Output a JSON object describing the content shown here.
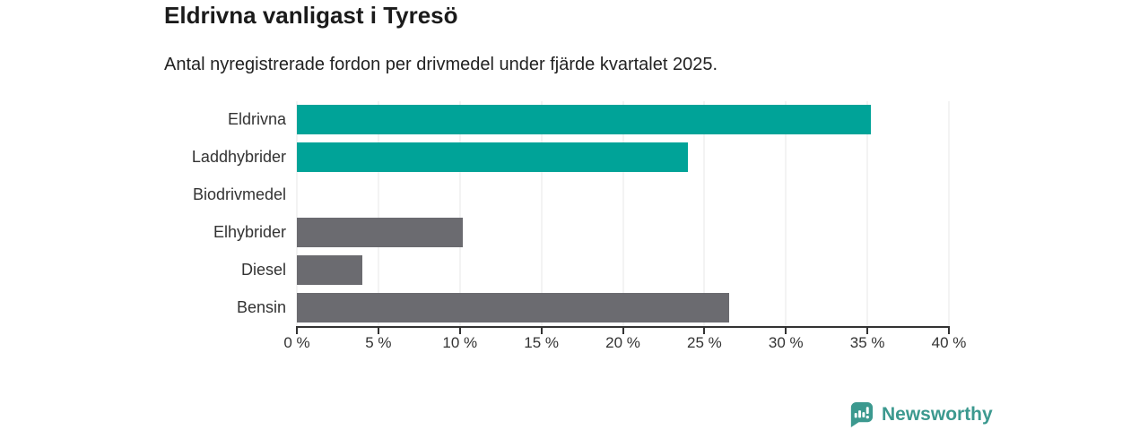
{
  "header": {
    "title": "Eldrivna vanligast i Tyresö",
    "subtitle": "Antal nyregistrerade fordon per drivmedel under fjärde kvartalet 2025."
  },
  "chart_data": {
    "type": "bar",
    "orientation": "horizontal",
    "title": "Eldrivna vanligast i Tyresö",
    "subtitle": "Antal nyregistrerade fordon per drivmedel under fjärde kvartalet 2025.",
    "categories": [
      "Eldrivna",
      "Laddhybrider",
      "Biodrivmedel",
      "Elhybrider",
      "Diesel",
      "Bensin"
    ],
    "values": [
      35.2,
      24.0,
      0,
      10.2,
      4.0,
      26.5
    ],
    "unit": "%",
    "bar_colors": [
      "#00a398",
      "#00a398",
      "#6b6b70",
      "#6b6b70",
      "#6b6b70",
      "#6b6b70"
    ],
    "xlim": [
      0,
      40
    ],
    "x_ticks": [
      0,
      5,
      10,
      15,
      20,
      25,
      30,
      35,
      40
    ],
    "x_tick_labels": [
      "0 %",
      "5 %",
      "10 %",
      "15 %",
      "20 %",
      "25 %",
      "30 %",
      "35 %",
      "40 %"
    ],
    "grid": true,
    "legend": "none"
  },
  "colors": {
    "electric_teal": "#00a398",
    "fossil_gray": "#6b6b70",
    "gridline": "#e7e7e7",
    "axis": "#333333",
    "title_text": "#1b1b1b",
    "label_text": "#333333",
    "brand_teal": "#3c998f"
  },
  "branding": {
    "logo_text": "Newsworthy",
    "logo_icon": "bar-chart-speech-bubble"
  }
}
